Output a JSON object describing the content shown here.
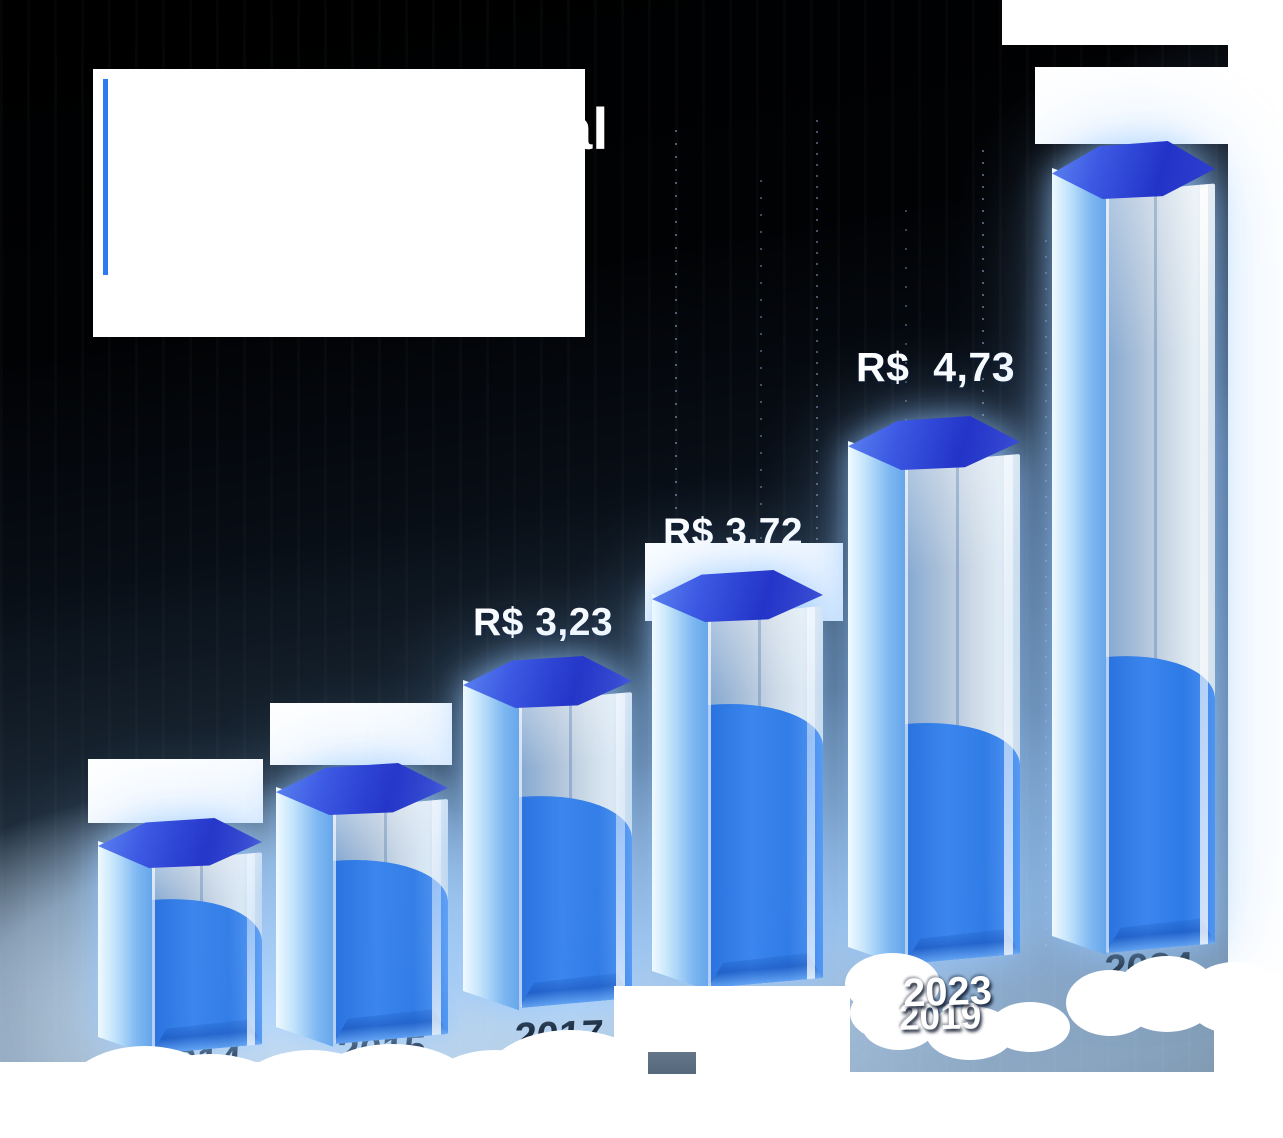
{
  "title": {
    "visible_fragment": "al",
    "note_masked_by_white_box": true
  },
  "chart_data": {
    "type": "bar",
    "orientation": "vertical",
    "currency": "R$",
    "grid": false,
    "legend": null,
    "title_visible_fragment": "al",
    "categories": [
      "2014",
      "2015",
      "2017",
      "",
      "2023",
      "2024"
    ],
    "values": [
      null,
      null,
      3.23,
      3.72,
      4.73,
      null
    ],
    "value_labels": [
      "",
      "",
      "R$ 3,23",
      "R$ 3,72",
      "R$  4,73",
      ""
    ],
    "bars": [
      {
        "year": "2014",
        "value": null,
        "value_label": "",
        "value_masked": true
      },
      {
        "year": "2015",
        "value": null,
        "value_label": "",
        "value_masked": true
      },
      {
        "year": "2017",
        "value": 3.23,
        "value_label": "R$ 3,23"
      },
      {
        "year": "",
        "value": 3.72,
        "value_label": "R$ 3,72",
        "year_hidden": true
      },
      {
        "year": "2023",
        "year_overlay": "2019",
        "value": 4.73,
        "value_label": "R$  4,73"
      },
      {
        "year": "2024",
        "value": null,
        "value_label": "",
        "value_masked": true
      }
    ]
  },
  "colors": {
    "accent_line": "#2d7bf2",
    "bar_liquid_blue": "#2f7de6",
    "bar_top_blue": "#2a3fd0",
    "bar_glass": "#c7d6e6",
    "background_top": "#000000",
    "background_bottom": "#7e95a9",
    "year_text_dark": "#0b1622",
    "label_text_white": "#ffffff"
  }
}
